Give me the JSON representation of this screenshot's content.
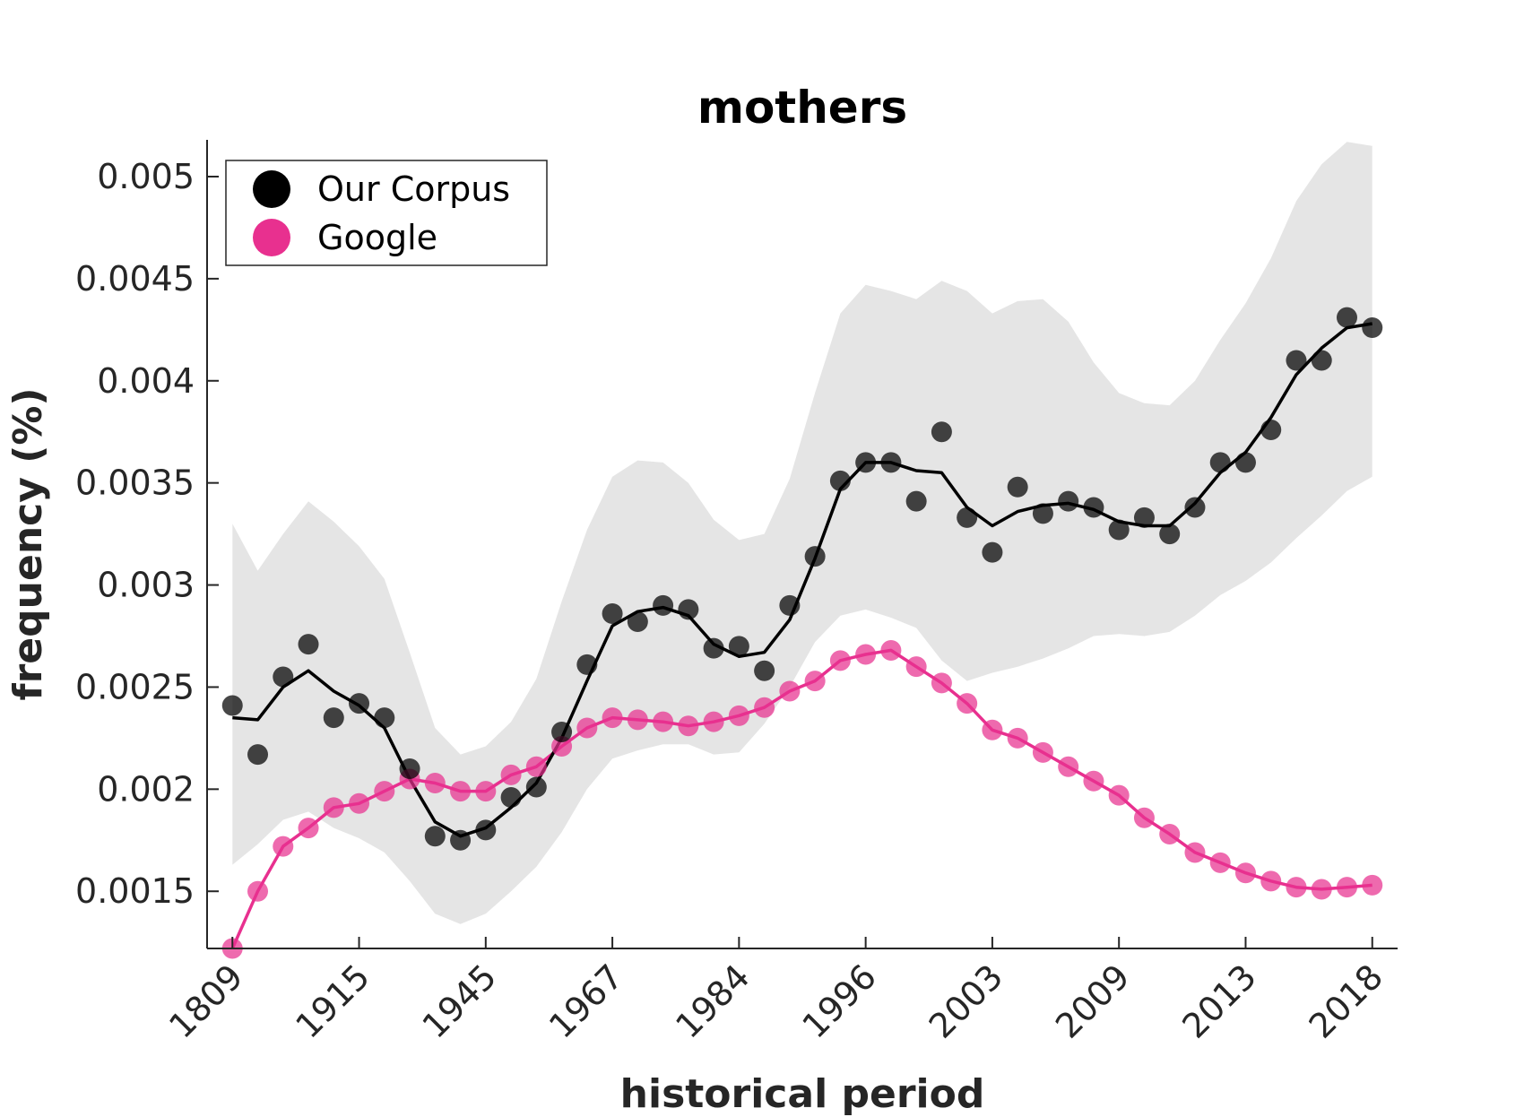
{
  "chart_data": {
    "type": "scatter",
    "title": "mothers",
    "xlabel": "historical period",
    "ylabel": "frequency (%)",
    "x_tick_labels": [
      "1809",
      "1915",
      "1945",
      "1967",
      "1984",
      "1996",
      "2003",
      "2009",
      "2013",
      "2018"
    ],
    "x_tick_indices": [
      1,
      6,
      11,
      16,
      21,
      26,
      31,
      36,
      41,
      46
    ],
    "x_index": [
      1,
      2,
      3,
      4,
      5,
      6,
      7,
      8,
      9,
      10,
      11,
      12,
      13,
      14,
      15,
      16,
      17,
      18,
      19,
      20,
      21,
      22,
      23,
      24,
      25,
      26,
      27,
      28,
      29,
      30,
      31,
      32,
      33,
      34,
      35,
      36,
      37,
      38,
      39,
      40,
      41,
      42,
      43,
      44,
      45,
      46
    ],
    "xlim": [
      0,
      47
    ],
    "ylim": [
      0.00122,
      0.00518
    ],
    "y_ticks": [
      0.0015,
      0.002,
      0.0025,
      0.003,
      0.0035,
      0.004,
      0.0045,
      0.005
    ],
    "y_tick_labels": [
      "0.0015",
      "0.002",
      "0.0025",
      "0.003",
      "0.0035",
      "0.004",
      "0.0045",
      "0.005"
    ],
    "grid": false,
    "legend_position": "top-left",
    "colors": {
      "our_corpus": "#000000",
      "google": "#e8308f",
      "band": "#e5e5e5"
    },
    "series": [
      {
        "name": "Our Corpus",
        "points": [
          0.00241,
          0.00217,
          0.00255,
          0.00271,
          0.00235,
          0.00242,
          0.00235,
          0.0021,
          0.00177,
          0.00175,
          0.0018,
          0.00196,
          0.00201,
          0.00228,
          0.00261,
          0.00286,
          0.00282,
          0.0029,
          0.00288,
          0.00269,
          0.0027,
          0.00258,
          0.0029,
          0.00314,
          0.00351,
          0.0036,
          0.0036,
          0.00341,
          0.00375,
          0.00333,
          0.00316,
          0.00348,
          0.00335,
          0.00341,
          0.00338,
          0.00327,
          0.00333,
          0.00325,
          0.00338,
          0.0036,
          0.0036,
          0.00376,
          0.0041,
          0.0041,
          0.00431,
          0.00426
        ],
        "trend": [
          0.00235,
          0.00234,
          0.0025,
          0.00258,
          0.00248,
          0.00241,
          0.0023,
          0.00205,
          0.00184,
          0.00177,
          0.00181,
          0.00191,
          0.00203,
          0.00225,
          0.00253,
          0.0028,
          0.00287,
          0.00289,
          0.00285,
          0.00271,
          0.00265,
          0.00267,
          0.00283,
          0.00313,
          0.00347,
          0.0036,
          0.0036,
          0.00356,
          0.00355,
          0.00338,
          0.00329,
          0.00336,
          0.00339,
          0.0034,
          0.00337,
          0.00331,
          0.00329,
          0.00329,
          0.0034,
          0.00355,
          0.00365,
          0.00382,
          0.00403,
          0.00416,
          0.00426,
          0.00428
        ],
        "band_upper": [
          0.0033,
          0.00307,
          0.00325,
          0.00341,
          0.00331,
          0.00319,
          0.00303,
          0.00267,
          0.0023,
          0.00217,
          0.00221,
          0.00233,
          0.00254,
          0.00292,
          0.00327,
          0.00353,
          0.00361,
          0.0036,
          0.0035,
          0.00332,
          0.00322,
          0.00325,
          0.00352,
          0.00394,
          0.00433,
          0.00447,
          0.00444,
          0.0044,
          0.00449,
          0.00444,
          0.00433,
          0.00439,
          0.0044,
          0.00429,
          0.00409,
          0.00394,
          0.00389,
          0.00388,
          0.004,
          0.0042,
          0.00438,
          0.0046,
          0.00488,
          0.00506,
          0.00517,
          0.00515
        ],
        "band_lower": [
          0.00163,
          0.00173,
          0.00185,
          0.00189,
          0.00181,
          0.00176,
          0.00169,
          0.00155,
          0.00139,
          0.00134,
          0.00139,
          0.0015,
          0.00162,
          0.00179,
          0.002,
          0.00215,
          0.00219,
          0.00222,
          0.00222,
          0.00217,
          0.00218,
          0.00232,
          0.0025,
          0.00272,
          0.00285,
          0.00288,
          0.00284,
          0.00279,
          0.00263,
          0.00253,
          0.00257,
          0.0026,
          0.00264,
          0.00269,
          0.00275,
          0.00276,
          0.00275,
          0.00277,
          0.00285,
          0.00295,
          0.00302,
          0.00311,
          0.00323,
          0.00334,
          0.00346,
          0.00353
        ]
      },
      {
        "name": "Google",
        "points": [
          0.00122,
          0.0015,
          0.00172,
          0.00181,
          0.00191,
          0.00193,
          0.00199,
          0.00205,
          0.00203,
          0.00199,
          0.00199,
          0.00207,
          0.00211,
          0.00221,
          0.0023,
          0.00235,
          0.00234,
          0.00233,
          0.00231,
          0.00233,
          0.00236,
          0.0024,
          0.00248,
          0.00253,
          0.00263,
          0.00266,
          0.00268,
          0.0026,
          0.00252,
          0.00242,
          0.00229,
          0.00225,
          0.00218,
          0.00211,
          0.00204,
          0.00197,
          0.00186,
          0.00178,
          0.00169,
          0.00164,
          0.00159,
          0.00155,
          0.00152,
          0.00151,
          0.00152,
          0.00153
        ]
      }
    ]
  }
}
